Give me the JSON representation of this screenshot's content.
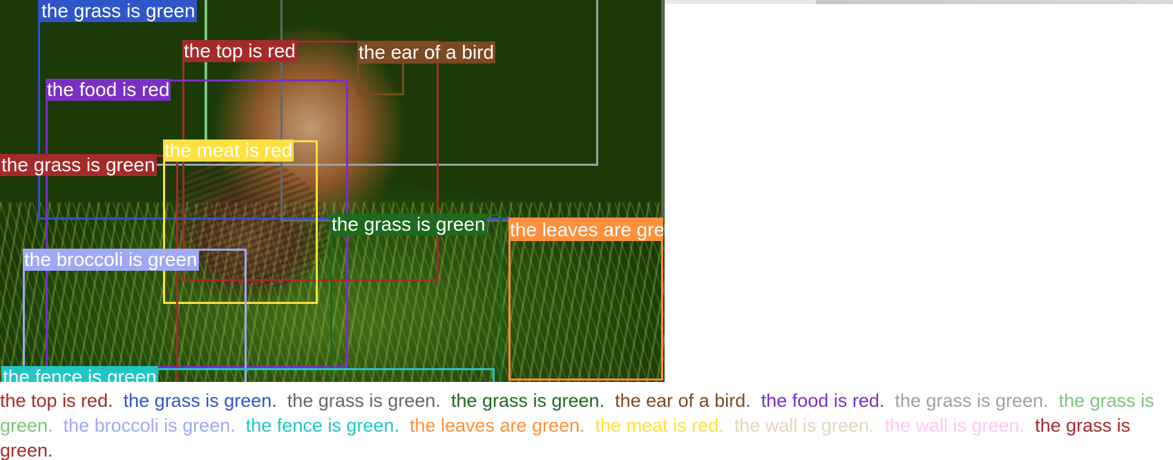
{
  "regions": [
    {
      "id": "top-red",
      "text": "the top is red",
      "color": "#a52a2a"
    },
    {
      "id": "grass-blue",
      "text": "the grass is green",
      "color": "#2f55c8"
    },
    {
      "id": "grass-gray-dark",
      "text": "the grass is green",
      "color": "#666666"
    },
    {
      "id": "grass-darkgreen",
      "text": "the grass is green",
      "color": "#1e6a1e"
    },
    {
      "id": "ear-brown",
      "text": "the ear of a bird",
      "color": "#7b4a22"
    },
    {
      "id": "food-purple",
      "text": "the food is red",
      "color": "#7b2fc4"
    },
    {
      "id": "grass-gray-light",
      "text": "the grass is green",
      "color": "#a0a0a0"
    },
    {
      "id": "grass-lightgreen",
      "text": "the grass is green",
      "color": "#7dc47d"
    },
    {
      "id": "broccoli-periwinkle",
      "text": "the broccoli is green",
      "color": "#9fa8f5"
    },
    {
      "id": "fence-cyan",
      "text": "the fence is green",
      "color": "#22c5c5"
    },
    {
      "id": "leaves-orange",
      "text": "the leaves are green",
      "color": "#ff8f3a"
    },
    {
      "id": "meat-yellow",
      "text": "the meat is red",
      "color": "#ffe040"
    },
    {
      "id": "wall-beige",
      "text": "the wall is green",
      "color": "#e2d6bd"
    },
    {
      "id": "pink",
      "text": "is green",
      "color": "#ffc8ee"
    },
    {
      "id": "grass-red2",
      "text": "the grass is green",
      "color": "#a52a2a"
    }
  ],
  "captions": [
    {
      "text": "the top is red.",
      "color": "#a52a2a"
    },
    {
      "text": "the grass is green.",
      "color": "#2f55c8"
    },
    {
      "text": "the grass is green.",
      "color": "#666666"
    },
    {
      "text": "the grass is green.",
      "color": "#1e6a1e"
    },
    {
      "text": "the ear of a bird.",
      "color": "#7b4a22"
    },
    {
      "text": "the food is red.",
      "color": "#7b2fc4"
    },
    {
      "text": "the grass is green.",
      "color": "#a0a0a0"
    },
    {
      "text": "the grass is green.",
      "color": "#7dc47d"
    },
    {
      "text": "the broccoli is green.",
      "color": "#9fa8f5"
    },
    {
      "text": "the fence is green.",
      "color": "#22c5c5"
    },
    {
      "text": "the leaves are green.",
      "color": "#ff8f3a"
    },
    {
      "text": "the meat is red.",
      "color": "#ffe040"
    },
    {
      "text": "the wall is green.",
      "color": "#e2d6bd"
    },
    {
      "text": "the wall is green.",
      "color": "#ffc8ee"
    },
    {
      "text": "the grass is green.",
      "color": "#a52a2a"
    }
  ]
}
